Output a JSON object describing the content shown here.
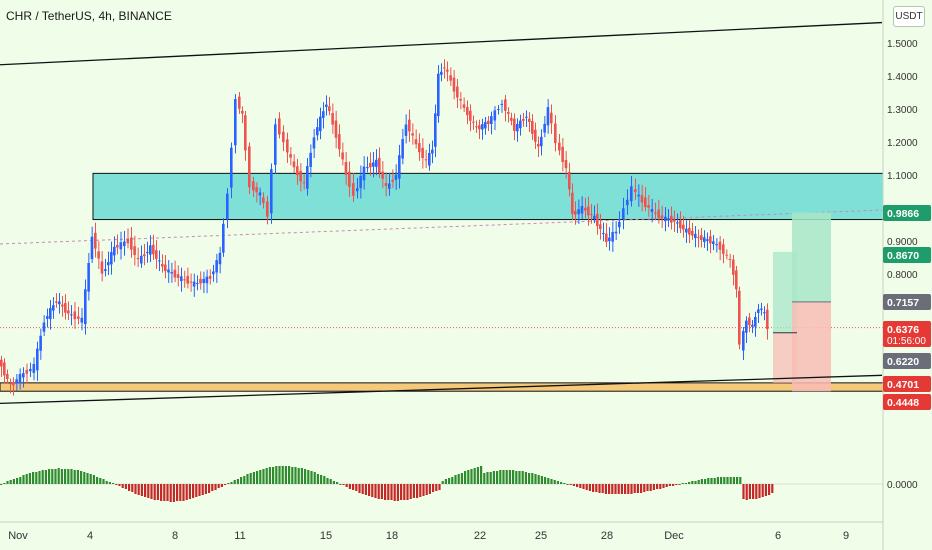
{
  "header": {
    "symbol": "CHR / TetherUS",
    "interval": "4h",
    "exchange": "BINANCE",
    "title_text": "CHR / TetherUS, 4h, BINANCE",
    "currency": "USDT"
  },
  "colors": {
    "background": "#f0fde9",
    "candle_up": "#2962ff",
    "candle_down": "#ef5350",
    "supply_zone": "#7fe0d8",
    "demand_zone": "#f5c97a",
    "macd_up": "#2e8b2e",
    "macd_down": "#c62828",
    "target_zone": "#a8e6c8",
    "stop_zone": "#f8bcb4",
    "last_price_badge": "#e53935",
    "grey_badge": "#6b6e78",
    "green_badge": "#1e9c6a"
  },
  "chart_data": {
    "type": "candlestick",
    "title": "CHR / TetherUS, 4h, BINANCE",
    "y_axis": {
      "range": [
        0.38,
        1.62
      ],
      "ticks": [
        "1.5000",
        "1.4000",
        "1.3000",
        "1.2000",
        "1.1000",
        "0.9000",
        "0.8000"
      ],
      "unit": "USDT"
    },
    "x_axis": {
      "ticks": [
        "Nov",
        "4",
        "8",
        "11",
        "15",
        "18",
        "22",
        "25",
        "28",
        "Dec",
        "6",
        "9"
      ]
    },
    "price_badges": [
      {
        "label": "0.9866",
        "value": 0.9866,
        "style": "green"
      },
      {
        "label": "0.8670",
        "value": 0.867,
        "style": "green"
      },
      {
        "label": "0.7157",
        "value": 0.7157,
        "style": "grey"
      },
      {
        "label": "0.6376",
        "value": 0.6376,
        "style": "red",
        "sub": "01:56:00"
      },
      {
        "label": "0.6220",
        "value": 0.622,
        "style": "grey"
      },
      {
        "label": "0.4701",
        "value": 0.4701,
        "style": "red"
      },
      {
        "label": "0.4448",
        "value": 0.4448,
        "style": "red"
      }
    ],
    "last_price": 0.6376,
    "countdown": "01:56:00",
    "zones": [
      {
        "name": "supply",
        "from": 0.965,
        "to": 1.105
      },
      {
        "name": "demand",
        "from": 0.4448,
        "to": 0.4701
      }
    ],
    "trendlines": [
      {
        "name": "upper-channel",
        "points": [
          [
            "Nov",
            1.434
          ],
          [
            "Dec 9",
            1.562
          ]
        ]
      },
      {
        "name": "lower-channel",
        "points": [
          [
            "Nov",
            0.408
          ],
          [
            "Dec 9",
            0.493
          ]
        ]
      }
    ],
    "macd_baseline_label": "0.0000"
  }
}
